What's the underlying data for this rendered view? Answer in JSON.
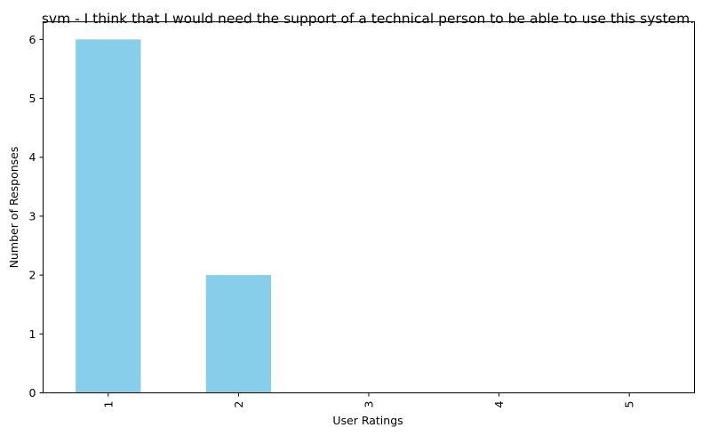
{
  "chart_data": {
    "type": "bar",
    "title": "svm - I think that I would need the support of a technical person to be able to use this system.",
    "xlabel": "User Ratings",
    "ylabel": "Number of Responses",
    "categories": [
      "1",
      "2",
      "3",
      "4",
      "5"
    ],
    "values": [
      6,
      2,
      0,
      0,
      0
    ],
    "ylim": [
      0,
      6.3
    ],
    "yticks": [
      "0",
      "1",
      "2",
      "3",
      "4",
      "5",
      "6"
    ],
    "bar_color": "#87ceeb",
    "grid": false,
    "legend": "none"
  }
}
